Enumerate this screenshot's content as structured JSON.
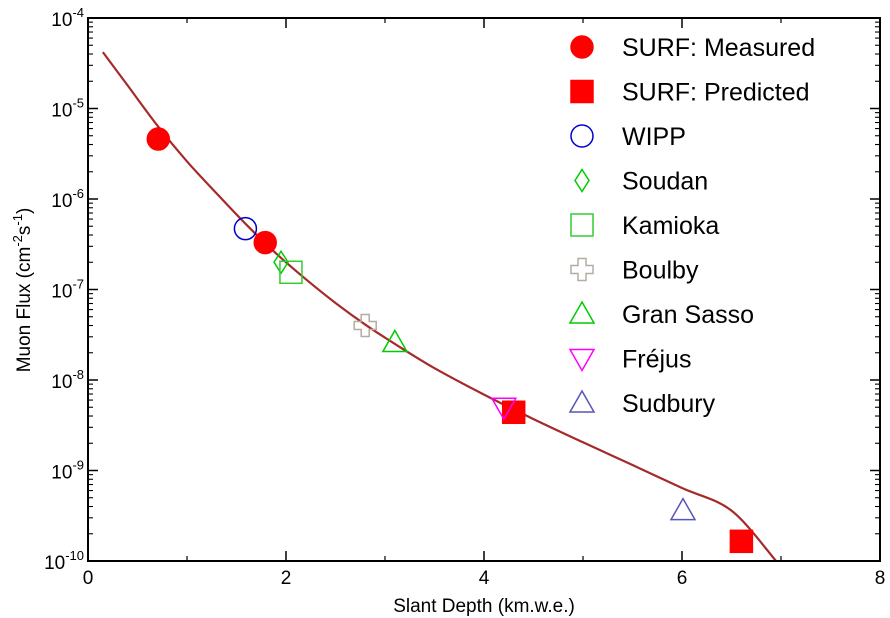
{
  "chart_data": {
    "type": "scatter",
    "xlabel": "Slant Depth (km.w.e.)",
    "ylabel": "Muon Flux (cm",
    "ylabel_exp1": "-2",
    "ylabel_mid": "s",
    "ylabel_exp2": "-1",
    "ylabel_end": ")",
    "xlim": [
      0,
      8
    ],
    "ylim": [
      1e-10,
      0.0001
    ],
    "yscale": "log",
    "grid": false,
    "legend_position": "top-right",
    "x_ticks": [
      {
        "value": 0,
        "label": "0"
      },
      {
        "value": 2,
        "label": "2"
      },
      {
        "value": 4,
        "label": "4"
      },
      {
        "value": 6,
        "label": "6"
      },
      {
        "value": 8,
        "label": "8"
      }
    ],
    "y_ticks": [
      {
        "value": 1e-10,
        "base": "10",
        "exp": "-10"
      },
      {
        "value": 1e-09,
        "base": "10",
        "exp": "-9"
      },
      {
        "value": 1e-08,
        "base": "10",
        "exp": "-8"
      },
      {
        "value": 1e-07,
        "base": "10",
        "exp": "-7"
      },
      {
        "value": 1e-06,
        "base": "10",
        "exp": "-6"
      },
      {
        "value": 1e-05,
        "base": "10",
        "exp": "-5"
      },
      {
        "value": 0.0001,
        "base": "10",
        "exp": "-4"
      }
    ],
    "fit_curve": {
      "color": "#a52a2a",
      "points": [
        [
          0.15,
          4.2e-05
        ],
        [
          0.4,
          1.8e-05
        ],
        [
          0.7,
          6.5e-06
        ],
        [
          1.0,
          2.6e-06
        ],
        [
          1.3,
          1.15e-06
        ],
        [
          1.6,
          5.2e-07
        ],
        [
          1.9,
          2.5e-07
        ],
        [
          2.2,
          1.3e-07
        ],
        [
          2.5,
          7.1e-08
        ],
        [
          2.8,
          4.1e-08
        ],
        [
          3.1,
          2.5e-08
        ],
        [
          3.5,
          1.35e-08
        ],
        [
          4.0,
          6.9e-09
        ],
        [
          4.5,
          3.7e-09
        ],
        [
          5.0,
          2.05e-09
        ],
        [
          5.5,
          1.15e-09
        ],
        [
          6.0,
          6.4e-10
        ],
        [
          6.5,
          3.6e-10
        ],
        [
          6.95,
          1e-10
        ]
      ]
    },
    "series": [
      {
        "name": "SURF: Measured",
        "marker": "circle-filled",
        "color": "#ff0000",
        "points": [
          [
            0.71,
            4.6e-06
          ],
          [
            1.79,
            3.3e-07
          ]
        ]
      },
      {
        "name": "SURF: Predicted",
        "marker": "square-filled",
        "color": "#ff0000",
        "points": [
          [
            4.3,
            4.4e-09
          ],
          [
            6.6,
            1.65e-10
          ]
        ]
      },
      {
        "name": "WIPP",
        "marker": "circle-open",
        "color": "#0000cc",
        "points": [
          [
            1.59,
            4.7e-07
          ]
        ]
      },
      {
        "name": "Soudan",
        "marker": "diamond-open",
        "color": "#00cc00",
        "points": [
          [
            1.95,
            2e-07
          ]
        ]
      },
      {
        "name": "Kamioka",
        "marker": "square-open",
        "color": "#33cc33",
        "points": [
          [
            2.05,
            1.55e-07
          ]
        ]
      },
      {
        "name": "Boulby",
        "marker": "cross-open",
        "color": "#b3ada0",
        "points": [
          [
            2.8,
            4e-08
          ]
        ]
      },
      {
        "name": "Gran Sasso",
        "marker": "triangle-up-open",
        "color": "#00cc00",
        "points": [
          [
            3.1,
            2.6e-08
          ]
        ]
      },
      {
        "name": "Fréjus",
        "marker": "triangle-down-open",
        "color": "#ff00ff",
        "points": [
          [
            4.2,
            5e-09
          ]
        ]
      },
      {
        "name": "Sudbury",
        "marker": "triangle-up-open",
        "color": "#5555bb",
        "points": [
          [
            6.01,
            3.6e-10
          ]
        ]
      }
    ]
  }
}
